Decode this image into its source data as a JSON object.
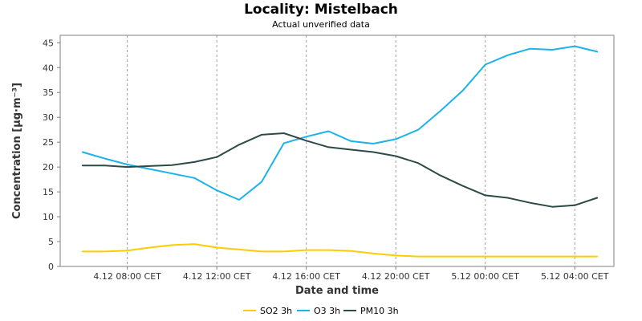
{
  "header": {
    "title": "Locality: Mistelbach",
    "subtitle": "Actual unverified data"
  },
  "chart_data": {
    "type": "line",
    "title": "Locality: Mistelbach",
    "subtitle": "Actual unverified data",
    "xlabel": "Date and time",
    "ylabel": "Concentration [µg·m⁻³]",
    "ylim": [
      0,
      46.5
    ],
    "yticks": [
      0,
      5,
      10,
      15,
      20,
      25,
      30,
      35,
      40,
      45
    ],
    "xlim": [
      "4.12 05:00",
      "5.12 05:45"
    ],
    "xticks": [
      {
        "x": "4.12 08:00",
        "label": "4.12 08:00 CET"
      },
      {
        "x": "4.12 12:00",
        "label": "4.12 12:00 CET"
      },
      {
        "x": "4.12 16:00",
        "label": "4.12 16:00 CET"
      },
      {
        "x": "4.12 20:00",
        "label": "4.12 20:00 CET"
      },
      {
        "x": "5.12 00:00",
        "label": "5.12 00:00 CET"
      },
      {
        "x": "5.12 04:00",
        "label": "5.12 04:00 CET"
      }
    ],
    "grid": true,
    "legend_position": "bottom",
    "x": [
      "4.12 06:00",
      "4.12 07:00",
      "4.12 08:00",
      "4.12 09:00",
      "4.12 10:00",
      "4.12 11:00",
      "4.12 12:00",
      "4.12 13:00",
      "4.12 14:00",
      "4.12 15:00",
      "4.12 16:00",
      "4.12 17:00",
      "4.12 18:00",
      "4.12 19:00",
      "4.12 20:00",
      "4.12 21:00",
      "4.12 22:00",
      "4.12 23:00",
      "5.12 00:00",
      "5.12 01:00",
      "5.12 02:00",
      "5.12 03:00",
      "5.12 04:00",
      "5.12 05:00"
    ],
    "series": [
      {
        "name": "SO2 3h",
        "color": "#ffcc00",
        "values": [
          3.0,
          3.0,
          3.2,
          3.8,
          4.3,
          4.5,
          3.8,
          3.4,
          3.0,
          3.0,
          3.3,
          3.3,
          3.1,
          2.6,
          2.2,
          2.0,
          2.0,
          2.0,
          2.0,
          2.0,
          2.0,
          2.0,
          2.0,
          2.0
        ]
      },
      {
        "name": "O3 3h",
        "color": "#1ab3ea",
        "values": [
          23.0,
          21.7,
          20.5,
          19.6,
          18.7,
          17.8,
          15.3,
          13.4,
          17.0,
          24.8,
          26.1,
          27.2,
          25.2,
          24.7,
          25.6,
          27.5,
          31.3,
          35.4,
          40.6,
          42.5,
          43.8,
          43.6,
          44.3,
          43.2
        ]
      },
      {
        "name": "PM10 3h",
        "color": "#2d4a47",
        "values": [
          20.3,
          20.3,
          20.0,
          20.2,
          20.4,
          21.0,
          22.0,
          24.5,
          26.5,
          26.8,
          25.3,
          24.0,
          23.5,
          23.0,
          22.2,
          20.8,
          18.3,
          16.2,
          14.3,
          13.8,
          12.8,
          12.0,
          12.3,
          13.8
        ]
      }
    ]
  }
}
